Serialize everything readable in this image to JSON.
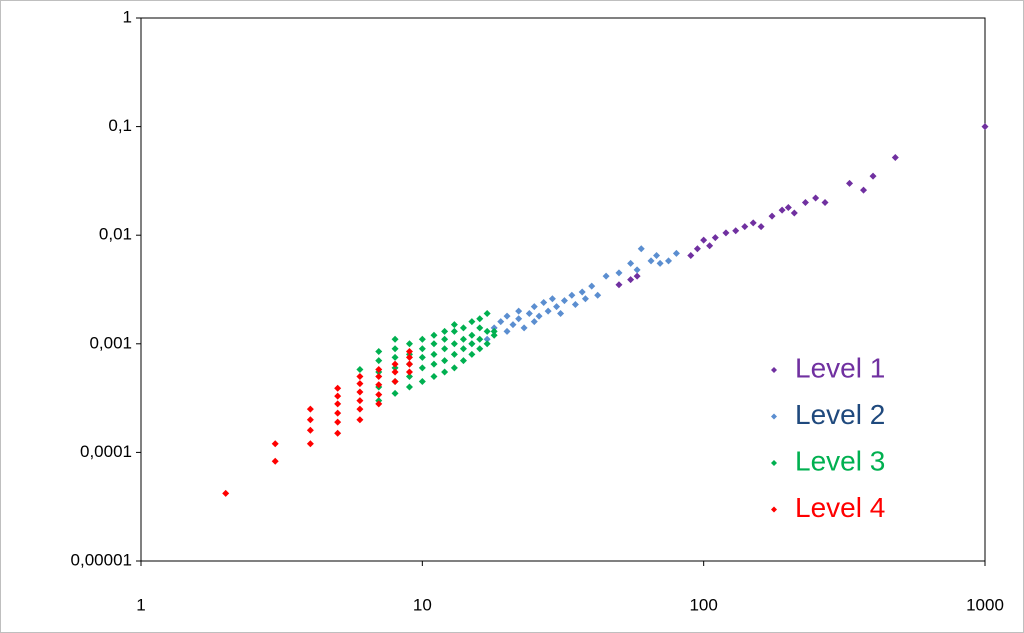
{
  "chart_data": {
    "type": "scatter",
    "xscale": "log",
    "yscale": "log",
    "xlim": [
      1,
      1000
    ],
    "xticks": [
      1,
      10,
      100,
      1000
    ],
    "ylim": [
      1e-05,
      1
    ],
    "yticks": [
      {
        "value": 1e-05,
        "label": "0,00001"
      },
      {
        "value": 0.0001,
        "label": "0,0001"
      },
      {
        "value": 0.001,
        "label": "0,001"
      },
      {
        "value": 0.01,
        "label": "0,01"
      },
      {
        "value": 0.1,
        "label": "0,1"
      },
      1
    ],
    "grid": false,
    "legend": "lower right",
    "series": [
      {
        "name": "Level 1",
        "color": "#7030a0",
        "label_color": "#7030a0",
        "x": [
          50,
          55,
          58,
          90,
          95,
          100,
          105,
          110,
          120,
          130,
          140,
          150,
          160,
          175,
          190,
          200,
          210,
          230,
          250,
          270,
          330,
          370,
          400,
          480,
          1000
        ],
        "values": [
          0.0035,
          0.0039,
          0.0042,
          0.0065,
          0.0075,
          0.009,
          0.008,
          0.0095,
          0.0105,
          0.011,
          0.012,
          0.013,
          0.012,
          0.015,
          0.017,
          0.018,
          0.016,
          0.02,
          0.022,
          0.02,
          0.03,
          0.026,
          0.035,
          0.052,
          0.1
        ]
      },
      {
        "name": "Level 2",
        "color": "#5b8ed0",
        "label_color": "#1f497d",
        "x": [
          15,
          17,
          18,
          19,
          20,
          20,
          21,
          22,
          22,
          23,
          24,
          25,
          25,
          26,
          27,
          28,
          29,
          30,
          31,
          32,
          34,
          35,
          37,
          38,
          40,
          42,
          45,
          50,
          55,
          58,
          60,
          65,
          68,
          70,
          75,
          80
        ],
        "values": [
          0.001,
          0.0011,
          0.0014,
          0.0016,
          0.0013,
          0.0018,
          0.0015,
          0.0017,
          0.002,
          0.0014,
          0.0019,
          0.0016,
          0.0022,
          0.0018,
          0.0024,
          0.002,
          0.0026,
          0.0022,
          0.0019,
          0.0025,
          0.0028,
          0.0023,
          0.003,
          0.0026,
          0.0034,
          0.0028,
          0.0042,
          0.0045,
          0.0055,
          0.0048,
          0.0075,
          0.0058,
          0.0065,
          0.0055,
          0.0058,
          0.0068
        ]
      },
      {
        "name": "Level 3",
        "color": "#00b050",
        "label_color": "#00b050",
        "x": [
          6,
          7,
          7,
          7,
          7,
          7,
          8,
          8,
          8,
          8,
          8,
          8,
          9,
          9,
          9,
          9,
          9,
          10,
          10,
          10,
          10,
          10,
          11,
          11,
          11,
          11,
          11,
          12,
          12,
          12,
          12,
          12,
          13,
          13,
          13,
          13,
          13,
          14,
          14,
          14,
          14,
          15,
          15,
          15,
          15,
          16,
          16,
          16,
          16,
          17,
          17,
          17,
          18,
          18
        ],
        "values": [
          0.00058,
          0.0003,
          0.0004,
          0.00055,
          0.0007,
          0.00085,
          0.00035,
          0.00045,
          0.0006,
          0.00075,
          0.0009,
          0.0011,
          0.0004,
          0.0005,
          0.00065,
          0.0008,
          0.001,
          0.00045,
          0.0006,
          0.00075,
          0.0009,
          0.0011,
          0.0005,
          0.00065,
          0.0008,
          0.001,
          0.0012,
          0.00055,
          0.0007,
          0.0009,
          0.0011,
          0.0013,
          0.0006,
          0.0008,
          0.001,
          0.0013,
          0.0015,
          0.0007,
          0.0009,
          0.0011,
          0.0014,
          0.0008,
          0.001,
          0.0012,
          0.0016,
          0.0009,
          0.0011,
          0.0014,
          0.0017,
          0.001,
          0.0013,
          0.0019,
          0.0012,
          0.0013
        ]
      },
      {
        "name": "Level 4",
        "color": "#ff0000",
        "label_color": "#ff0000",
        "x": [
          2,
          3,
          3,
          4,
          4,
          4,
          4,
          5,
          5,
          5,
          5,
          5,
          5,
          6,
          6,
          6,
          6,
          6,
          6,
          7,
          7,
          7,
          7,
          7,
          8,
          8,
          8,
          9,
          9,
          9,
          9
        ],
        "values": [
          4.2e-05,
          8.3e-05,
          0.00012,
          0.00012,
          0.00016,
          0.0002,
          0.00025,
          0.00015,
          0.00019,
          0.00023,
          0.00028,
          0.00033,
          0.00039,
          0.0002,
          0.00025,
          0.0003,
          0.00036,
          0.00043,
          0.0005,
          0.00028,
          0.00034,
          0.00042,
          0.0005,
          0.00058,
          0.00045,
          0.00055,
          0.00065,
          0.00055,
          0.00065,
          0.00075,
          0.00085
        ]
      }
    ]
  }
}
